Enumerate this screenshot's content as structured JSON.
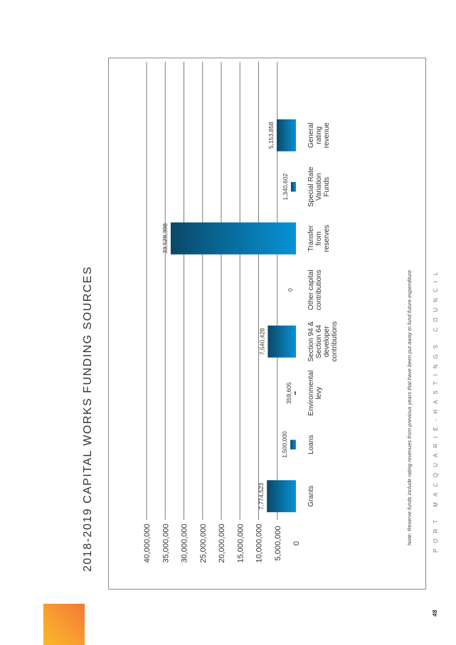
{
  "page": {
    "title": "2018-2019 CAPITAL WORKS FUNDING SOURCES",
    "footnote": "Note: Reserve funds include rating revenues from previous years that have been put away to fund future expenditure",
    "footer_org": "PORT MACQUARIE-HASTINGS COUNCIL",
    "page_number": "48"
  },
  "colors": {
    "bar_light": "#0693d6",
    "bar_dark": "#0b4868",
    "gridline": "#7a7a7a",
    "logo_orange": "#f79732"
  },
  "chart_data": {
    "type": "bar",
    "title": "2018-2019 CAPITAL WORKS FUNDING SOURCES",
    "xlabel": "",
    "ylabel": "",
    "categories": [
      "Grants",
      "Loans",
      "Environmental levy",
      "Section 94 & Section 64 developer contributions",
      "Other capital contributions",
      "Transfer from reserves",
      "Special Rate Variation Funds",
      "General rating revenue"
    ],
    "category_lines": [
      [
        "Grants"
      ],
      [
        "Loans"
      ],
      [
        "Environmental",
        "levy"
      ],
      [
        "Section 94 &",
        "Section 64",
        "developer",
        "contributions"
      ],
      [
        "Other capital",
        "contributions"
      ],
      [
        "Transfer",
        "from",
        "reserves"
      ],
      [
        "Special Rate",
        "Variation",
        "Funds"
      ],
      [
        "General",
        "rating",
        "revenue"
      ]
    ],
    "values": [
      7774523,
      1500000,
      359605,
      7540428,
      0,
      33528398,
      1340602,
      5153858
    ],
    "value_labels": [
      "7,774,523",
      "1,500,000",
      "359,605",
      "7,540,428",
      "0",
      "33,528,398",
      "1,340,602",
      "5,153,858"
    ],
    "bar_widths": [
      1.0,
      0.3,
      0.1,
      1.0,
      0.0,
      1.0,
      0.3,
      1.0
    ],
    "ylim": [
      0,
      40000000
    ],
    "yticks": [
      0,
      5000000,
      10000000,
      15000000,
      20000000,
      25000000,
      30000000,
      35000000,
      40000000
    ],
    "ytick_labels": [
      "0",
      "5,000,000",
      "10,000,000",
      "15,000,000",
      "20,000,000",
      "25,000,000",
      "30,000,000",
      "35,000,000",
      "40,000,000"
    ],
    "grid": true,
    "legend": "none",
    "orientation": "rotated 90° counter-clockwise on page"
  }
}
